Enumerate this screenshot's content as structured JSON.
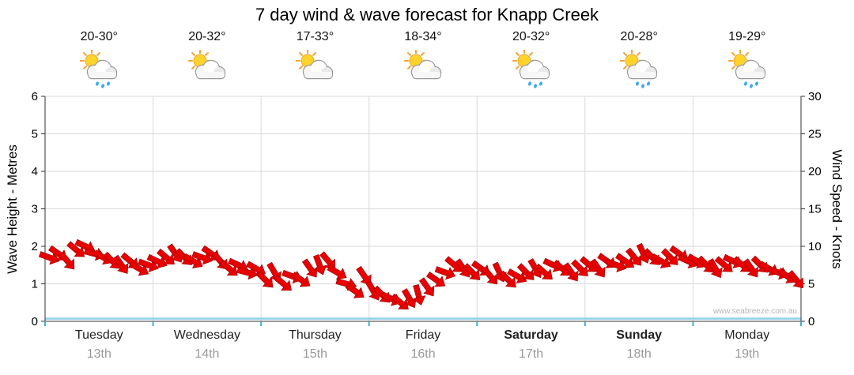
{
  "title": "7 day wind & wave forecast for Knapp Creek",
  "watermark": "www.seabreeze.com.au",
  "left_axis": {
    "label": "Wave Height - Metres",
    "ticks": [
      0,
      1,
      2,
      3,
      4,
      5,
      6
    ]
  },
  "right_axis": {
    "label": "Wind Speed - Knots",
    "ticks": [
      0,
      5,
      10,
      15,
      20,
      25,
      30
    ]
  },
  "days": [
    {
      "name": "Tuesday",
      "date": "13th",
      "temp": "20-30°",
      "icon": "partly-cloudy-rain",
      "bold": false
    },
    {
      "name": "Wednesday",
      "date": "14th",
      "temp": "20-32°",
      "icon": "partly-cloudy",
      "bold": false
    },
    {
      "name": "Thursday",
      "date": "15th",
      "temp": "17-33°",
      "icon": "partly-cloudy",
      "bold": false
    },
    {
      "name": "Friday",
      "date": "16th",
      "temp": "18-34°",
      "icon": "partly-cloudy",
      "bold": false
    },
    {
      "name": "Saturday",
      "date": "17th",
      "temp": "20-32°",
      "icon": "partly-cloudy-rain",
      "bold": true
    },
    {
      "name": "Sunday",
      "date": "18th",
      "temp": "20-28°",
      "icon": "partly-cloudy-rain",
      "bold": true
    },
    {
      "name": "Monday",
      "date": "19th",
      "temp": "19-29°",
      "icon": "partly-cloudy-rain",
      "bold": false
    }
  ],
  "colors": {
    "arrow_fill": "#e60000",
    "arrow_stroke": "#990000",
    "grid": "#d9d9d9",
    "axis": "#333333",
    "wave_line": "#8fd0e8",
    "bottom_tick": "#3fafd6",
    "date_gray": "#999999"
  },
  "chart_data": {
    "type": "wind-barb-series",
    "title": "7 day wind & wave forecast for Knapp Creek",
    "x_categories": [
      "Tuesday 13th",
      "Wednesday 14th",
      "Thursday 15th",
      "Friday 16th",
      "Saturday 17th",
      "Sunday 18th",
      "Monday 19th"
    ],
    "points_per_day": 12,
    "left_axis_label": "Wave Height - Metres",
    "left_ylim": [
      0,
      6
    ],
    "right_axis_label": "Wind Speed - Knots",
    "right_ylim": [
      0,
      30
    ],
    "wave_height_metres_flat": 0.07,
    "wind_knots": [
      8.5,
      9,
      8,
      9.5,
      10,
      9,
      8.5,
      8,
      7.5,
      8,
      7,
      7.5,
      8,
      8.5,
      9,
      8.5,
      8,
      8.5,
      9,
      8,
      7,
      7.5,
      6.5,
      7,
      5.5,
      6.5,
      5,
      6,
      5.5,
      7,
      7.5,
      8,
      6.5,
      5,
      4,
      6,
      4,
      3.5,
      3,
      2.5,
      3,
      3.5,
      4.5,
      5.5,
      6.5,
      7.5,
      7,
      6.5,
      7,
      6,
      6.5,
      5.5,
      6,
      6.5,
      7,
      6.5,
      7.5,
      7,
      6.5,
      7,
      7.5,
      7,
      8,
      7.5,
      8,
      8.5,
      9,
      8.5,
      8,
      8.5,
      9,
      8,
      8,
      7.5,
      7,
      7.5,
      8,
      7.5,
      7,
      7.5,
      7,
      6.5,
      6,
      5.5
    ],
    "wind_dir_deg": [
      20,
      35,
      50,
      40,
      25,
      15,
      30,
      45,
      55,
      40,
      30,
      20,
      25,
      40,
      55,
      45,
      30,
      20,
      35,
      50,
      40,
      25,
      15,
      30,
      45,
      60,
      40,
      20,
      35,
      55,
      70,
      50,
      30,
      15,
      35,
      55,
      60,
      45,
      25,
      40,
      60,
      75,
      55,
      35,
      20,
      40,
      55,
      45,
      35,
      50,
      65,
      45,
      30,
      45,
      60,
      40,
      25,
      40,
      55,
      45,
      40,
      55,
      35,
      20,
      35,
      50,
      65,
      45,
      30,
      45,
      35,
      25,
      30,
      45,
      60,
      40,
      25,
      40,
      55,
      45,
      30,
      20,
      35,
      50
    ]
  }
}
